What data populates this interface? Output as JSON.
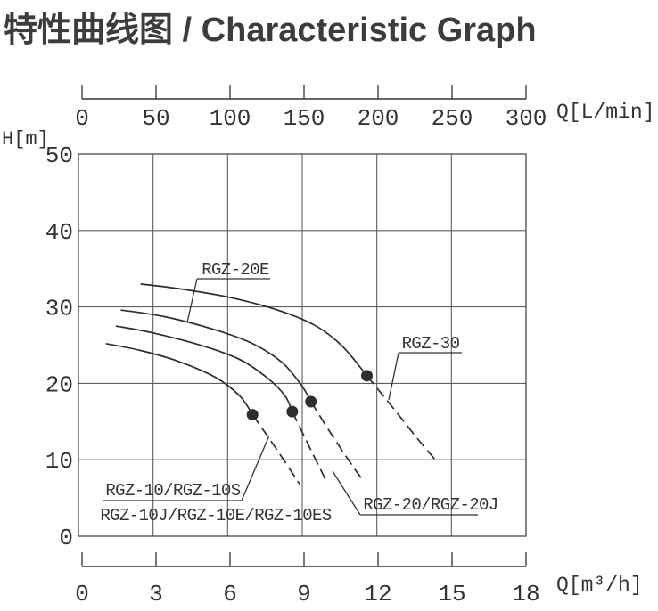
{
  "title": "特性曲线图 / Characteristic Graph",
  "chart_data": {
    "type": "line",
    "title": "特性曲线图 / Characteristic Graph",
    "grid": true,
    "x_axis_top": {
      "label": "Q[L/min]",
      "ticks": [
        0,
        50,
        100,
        150,
        200,
        250,
        300
      ],
      "range": [
        0,
        300
      ]
    },
    "x_axis_bottom": {
      "label": "Q[m³/h]",
      "ticks": [
        0,
        3,
        6,
        9,
        12,
        15,
        18
      ],
      "range": [
        0,
        18
      ]
    },
    "y_axis": {
      "label": "H[m]",
      "ticks": [
        50,
        40,
        30,
        20,
        10,
        0
      ],
      "range": [
        0,
        50
      ]
    },
    "series": [
      {
        "name": "RGZ-30",
        "solid": [
          [
            2.5,
            33.0
          ],
          [
            4.0,
            32.4
          ],
          [
            6.0,
            31.3
          ],
          [
            8.0,
            29.6
          ],
          [
            9.5,
            27.6
          ],
          [
            10.6,
            24.9
          ],
          [
            11.6,
            21.0
          ]
        ],
        "dashed": [
          [
            11.6,
            21.0
          ],
          [
            12.7,
            16.6
          ],
          [
            13.6,
            12.9
          ],
          [
            14.35,
            10.0
          ]
        ],
        "rated_point": [
          11.6,
          21.0
        ]
      },
      {
        "name": "RGZ-20E",
        "solid": [
          [
            1.7,
            29.6
          ],
          [
            3.5,
            28.7
          ],
          [
            5.5,
            27.0
          ],
          [
            7.0,
            25.2
          ],
          [
            8.2,
            22.7
          ],
          [
            9.0,
            19.6
          ],
          [
            9.35,
            17.6
          ]
        ],
        "dashed": [
          [
            9.35,
            17.6
          ],
          [
            10.2,
            13.2
          ],
          [
            11.0,
            9.3
          ],
          [
            11.4,
            7.5
          ]
        ],
        "rated_point": [
          9.35,
          17.6
        ]
      },
      {
        "name": "RGZ-20/RGZ-20J",
        "solid": [
          [
            1.5,
            27.5
          ],
          [
            3.0,
            26.6
          ],
          [
            5.0,
            24.9
          ],
          [
            6.5,
            23.1
          ],
          [
            7.6,
            20.7
          ],
          [
            8.3,
            18.4
          ],
          [
            8.6,
            16.3
          ]
        ],
        "dashed": [
          [
            8.6,
            16.3
          ],
          [
            9.3,
            11.6
          ],
          [
            10.0,
            7.0
          ]
        ],
        "rated_point": [
          8.6,
          16.3
        ]
      },
      {
        "name": "RGZ-10/RGZ-10S/RGZ-10J/RGZ-10E/RGZ-10ES",
        "solid": [
          [
            1.1,
            25.2
          ],
          [
            2.5,
            24.3
          ],
          [
            4.0,
            22.9
          ],
          [
            5.5,
            20.8
          ],
          [
            6.5,
            18.3
          ],
          [
            7.0,
            15.9
          ]
        ],
        "dashed": [
          [
            7.0,
            15.9
          ],
          [
            7.9,
            11.7
          ],
          [
            8.9,
            6.8
          ]
        ],
        "rated_point": [
          7.0,
          15.9
        ]
      }
    ],
    "annotations": [
      {
        "label": "RGZ-20E"
      },
      {
        "label": "RGZ-30"
      },
      {
        "label": "RGZ-10/RGZ-10S"
      },
      {
        "label": "RGZ-10J/RGZ-10E/RGZ-10ES"
      },
      {
        "label": "RGZ-20/RGZ-20J"
      }
    ],
    "legend_position": "inline-callouts",
    "colors": {
      "ink": "#333333",
      "curve": "#2e2e2e",
      "grid": "#5f5f5f",
      "border": "#474747"
    }
  }
}
